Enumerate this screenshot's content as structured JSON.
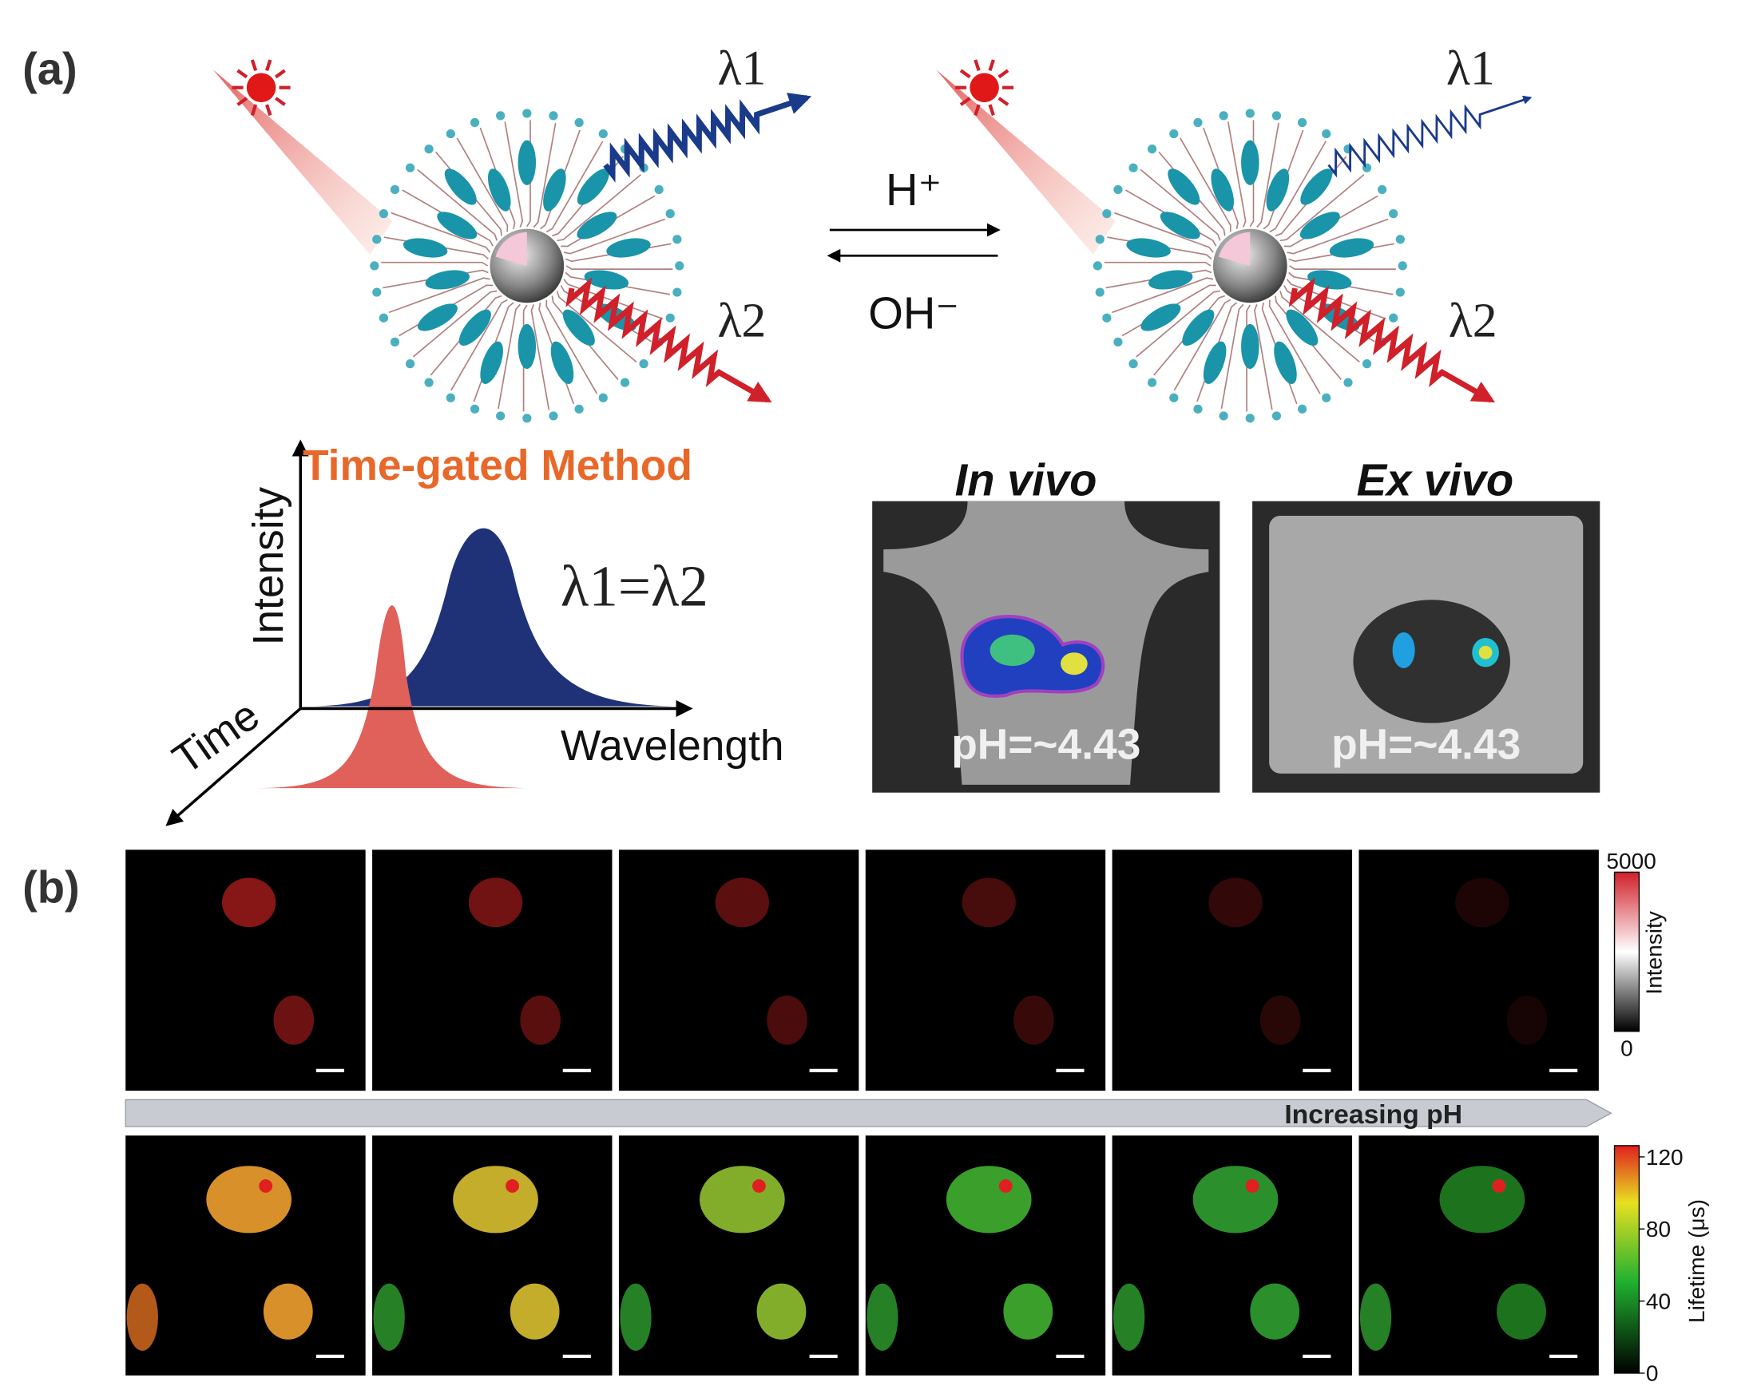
{
  "panel_a": {
    "label": "(a)",
    "scheme": {
      "left": {
        "lambda1": "λ1",
        "lambda2": "λ2"
      },
      "reaction": {
        "forward": "H⁺",
        "reverse": "OH⁻"
      },
      "right": {
        "lambda1": "λ1",
        "lambda2": "λ2"
      }
    },
    "time_gated": {
      "title": "Time-gated Method",
      "y_axis": "Intensity",
      "z_axis": "Time",
      "x_axis": "Wavelength",
      "equation": "λ1=λ2"
    },
    "imaging": [
      {
        "title": "In vivo",
        "label": "pH=~4.43"
      },
      {
        "title": "Ex vivo",
        "label": "pH=~4.43"
      }
    ]
  },
  "panel_b": {
    "label": "(b)",
    "intensity_scale": {
      "label": "Intensity",
      "max": 5000,
      "min": 0
    },
    "arrow_label": "Increasing pH",
    "lifetime_scale": {
      "label": "Lifetime (μs)",
      "ticks": [
        0,
        40,
        80,
        120
      ]
    }
  }
}
